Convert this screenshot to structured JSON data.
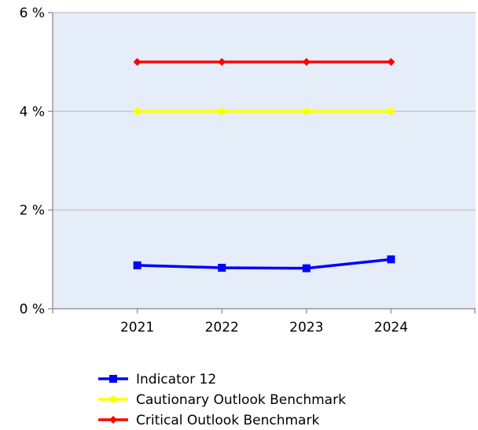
{
  "chart_data": {
    "type": "line",
    "categories": [
      "2021",
      "2022",
      "2023",
      "2024"
    ],
    "y_ticks": [
      "0 %",
      "2 %",
      "4 %",
      "6 %"
    ],
    "y_tick_values": [
      0,
      2,
      4,
      6
    ],
    "ylim": [
      0,
      6
    ],
    "grid": true,
    "legend_position": "bottom",
    "plot_background": "#e5edf9",
    "series": [
      {
        "name": "Indicator 12",
        "values": [
          0.88,
          0.83,
          0.82,
          1.0
        ],
        "color": "#0000ff",
        "marker": "square"
      },
      {
        "name": "Cautionary Outlook Benchmark",
        "values": [
          4,
          4,
          4,
          4
        ],
        "color": "#ffff00",
        "marker": "circle"
      },
      {
        "name": "Critical Outlook Benchmark",
        "values": [
          5,
          5,
          5,
          5
        ],
        "color": "#ff0000",
        "marker": "diamond"
      }
    ]
  }
}
